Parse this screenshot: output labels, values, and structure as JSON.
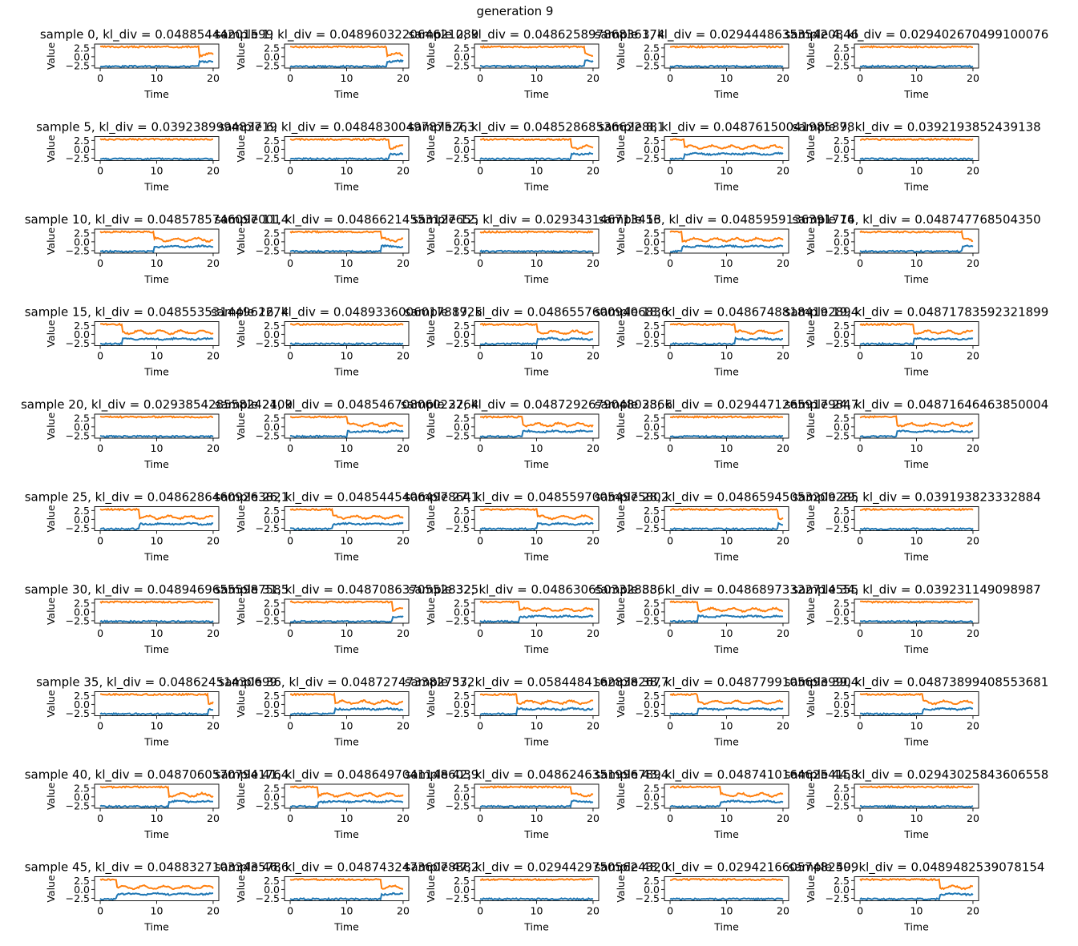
{
  "figure_title": "generation 9",
  "colors": {
    "series_0": "#1f77b4",
    "series_1": "#ff7f0e",
    "axes": "#000000",
    "background": "#ffffff"
  },
  "chart_data": {
    "type": "line",
    "layout": "grid of small multiples, 10 rows x 5 columns",
    "xlabel": "Time",
    "ylabel": "Value",
    "xlim": [
      -1,
      21
    ],
    "ylim": [
      -3.2,
      3.6
    ],
    "xticks": [
      0,
      10,
      20
    ],
    "ytick_labels": [
      "2.5",
      "0.0",
      "−2.5"
    ],
    "ytick_values": [
      2.5,
      0.0,
      -2.5
    ],
    "series_names": [
      "blue (low state)",
      "orange (high state)"
    ],
    "panels": [
      {
        "title": "sample 0, kl_div = 0.04885444201599",
        "change_time": 17.5
      },
      {
        "title": "sample 1, kl_div = 0.048960322064621089",
        "change_time": 17
      },
      {
        "title": "sample 2, kl_div = 0.04862589786836174",
        "change_time": 18.5
      },
      {
        "title": "sample 3, kl_div = 0.029444863535420846",
        "change_time": null
      },
      {
        "title": "sample 4, kl_div = 0.029402670499100076",
        "change_time": null
      },
      {
        "title": "sample 5, kl_div = 0.039238999483719",
        "change_time": null
      },
      {
        "title": "sample 6, kl_div = 0.04848300497875263",
        "change_time": 17.5
      },
      {
        "title": "sample 7, kl_div = 0.04852868536622881",
        "change_time": 16
      },
      {
        "title": "sample 8, kl_div = 0.04876150041985878",
        "change_time": 2.5
      },
      {
        "title": "sample 9, kl_div = 0.0392193852439138",
        "change_time": null
      },
      {
        "title": "sample 10, kl_div = 0.04857857460970014",
        "change_time": 9.5
      },
      {
        "title": "sample 11, kl_div = 0.04866214553127655",
        "change_time": 16
      },
      {
        "title": "sample 12, kl_div = 0.029343146713456",
        "change_time": null
      },
      {
        "title": "sample 13, kl_div = 0.0485959136391776",
        "change_time": 2
      },
      {
        "title": "sample 14, kl_div = 0.048747768504350",
        "change_time": 18
      },
      {
        "title": "sample 15, kl_div = 0.04855353144962274",
        "change_time": 4
      },
      {
        "title": "sample 16, kl_div = 0.048933600601788925",
        "change_time": null
      },
      {
        "title": "sample 17, kl_div = 0.04865576009406836",
        "change_time": 10
      },
      {
        "title": "sample 18, kl_div = 0.04867488184192894",
        "change_time": 11.5
      },
      {
        "title": "sample 19, kl_div = 0.04871783592321899",
        "change_time": 9.5
      },
      {
        "title": "sample 20, kl_div = 0.029385428558242409",
        "change_time": null
      },
      {
        "title": "sample 21, kl_div = 0.04854670806023764",
        "change_time": 10
      },
      {
        "title": "sample 22, kl_div = 0.048729267904803866",
        "change_time": 7.5
      },
      {
        "title": "sample 23, kl_div = 0.02944712659179847",
        "change_time": null
      },
      {
        "title": "sample 24, kl_div = 0.04871646463850004",
        "change_time": 6.5
      },
      {
        "title": "sample 25, kl_div = 0.04862864609263821",
        "change_time": 7
      },
      {
        "title": "sample 26, kl_div = 0.04854454064978641",
        "change_time": 7.5
      },
      {
        "title": "sample 27, kl_div = 0.04855970054975802",
        "change_time": 10
      },
      {
        "title": "sample 28, kl_div = 0.04865945053209285",
        "change_time": 19
      },
      {
        "title": "sample 29, kl_div = 0.039193823332884",
        "change_time": null
      },
      {
        "title": "sample 30, kl_div = 0.04894696555987585",
        "change_time": null
      },
      {
        "title": "sample 31, kl_div = 0.04870863705528325",
        "change_time": 18
      },
      {
        "title": "sample 32, kl_div = 0.0486306503328886",
        "change_time": 7
      },
      {
        "title": "sample 33, kl_div = 0.04868973322714555",
        "change_time": 5
      },
      {
        "title": "sample 34, kl_div = 0.039231149098987",
        "change_time": null
      },
      {
        "title": "sample 35, kl_div = 0.04862451430699",
        "change_time": 19
      },
      {
        "title": "sample 36, kl_div = 0.0487274733827532",
        "change_time": 8
      },
      {
        "title": "sample 37, kl_div = 0.05844841628382677",
        "change_time": 6.5
      },
      {
        "title": "sample 38, kl_div = 0.04877991056939904",
        "change_time": 5
      },
      {
        "title": "sample 39, kl_div = 0.04873899408553681",
        "change_time": 11
      },
      {
        "title": "sample 40, kl_div = 0.04870605707941764",
        "change_time": 12
      },
      {
        "title": "sample 41, kl_div = 0.04864970411486039",
        "change_time": 5
      },
      {
        "title": "sample 42, kl_div = 0.04862463519967894",
        "change_time": 16
      },
      {
        "title": "sample 43, kl_div = 0.04874101646254158",
        "change_time": 9
      },
      {
        "title": "sample 44, kl_div = 0.02943025843606558",
        "change_time": null
      },
      {
        "title": "sample 45, kl_div = 0.04883271033435786",
        "change_time": 3
      },
      {
        "title": "sample 46, kl_div = 0.04874324736078882",
        "change_time": 16
      },
      {
        "title": "sample 47, kl_div = 0.02944297505624320",
        "change_time": null
      },
      {
        "title": "sample 48, kl_div = 0.02942166057482509",
        "change_time": null
      },
      {
        "title": "sample 49, kl_div = 0.0489482539078154",
        "change_time": 14
      }
    ],
    "base_levels": {
      "blue_before": -2.7,
      "orange_before": 2.8,
      "blue_after": -1.3,
      "orange_after": 0.6
    },
    "noise_amplitude": 0.22,
    "time_step": 0.2
  }
}
